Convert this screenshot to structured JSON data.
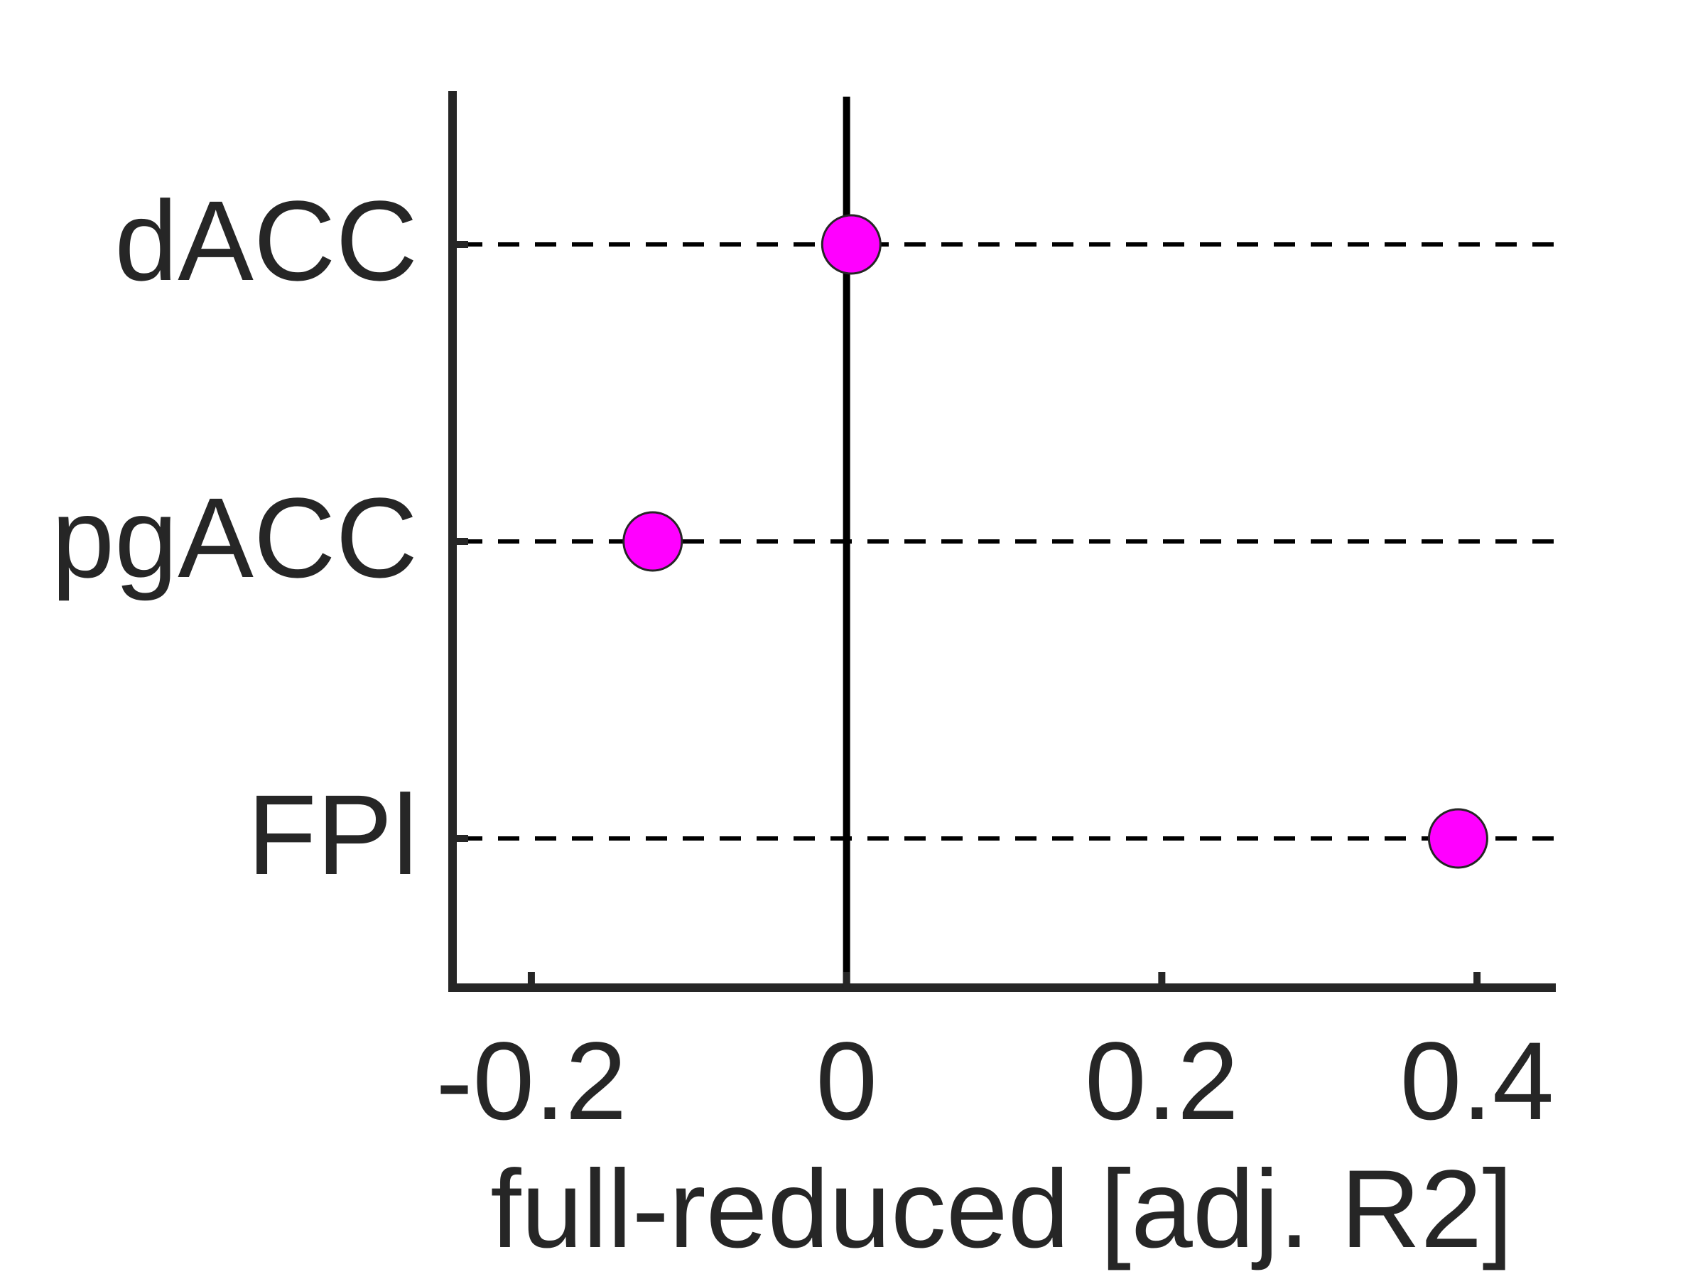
{
  "chart_data": {
    "type": "scatter",
    "title": "",
    "xlabel": "full-reduced [adj. R2]",
    "ylabel": "",
    "categories": [
      "dACC",
      "pgACC",
      "FPl"
    ],
    "series": [
      {
        "values": [
          0.003,
          -0.123,
          0.388
        ]
      }
    ],
    "xlim": [
      -0.25,
      0.45
    ],
    "xticks": [
      -0.2,
      0,
      0.2,
      0.4
    ],
    "xtick_labels": [
      "-0.2",
      "0",
      "0.2",
      "0.4"
    ],
    "reference_line_x": 0,
    "grid": "horizontal dashed lines at each category",
    "marker_color": "#ff00ff",
    "marker_edge_color": "#262626",
    "axis_color": "#262626"
  }
}
